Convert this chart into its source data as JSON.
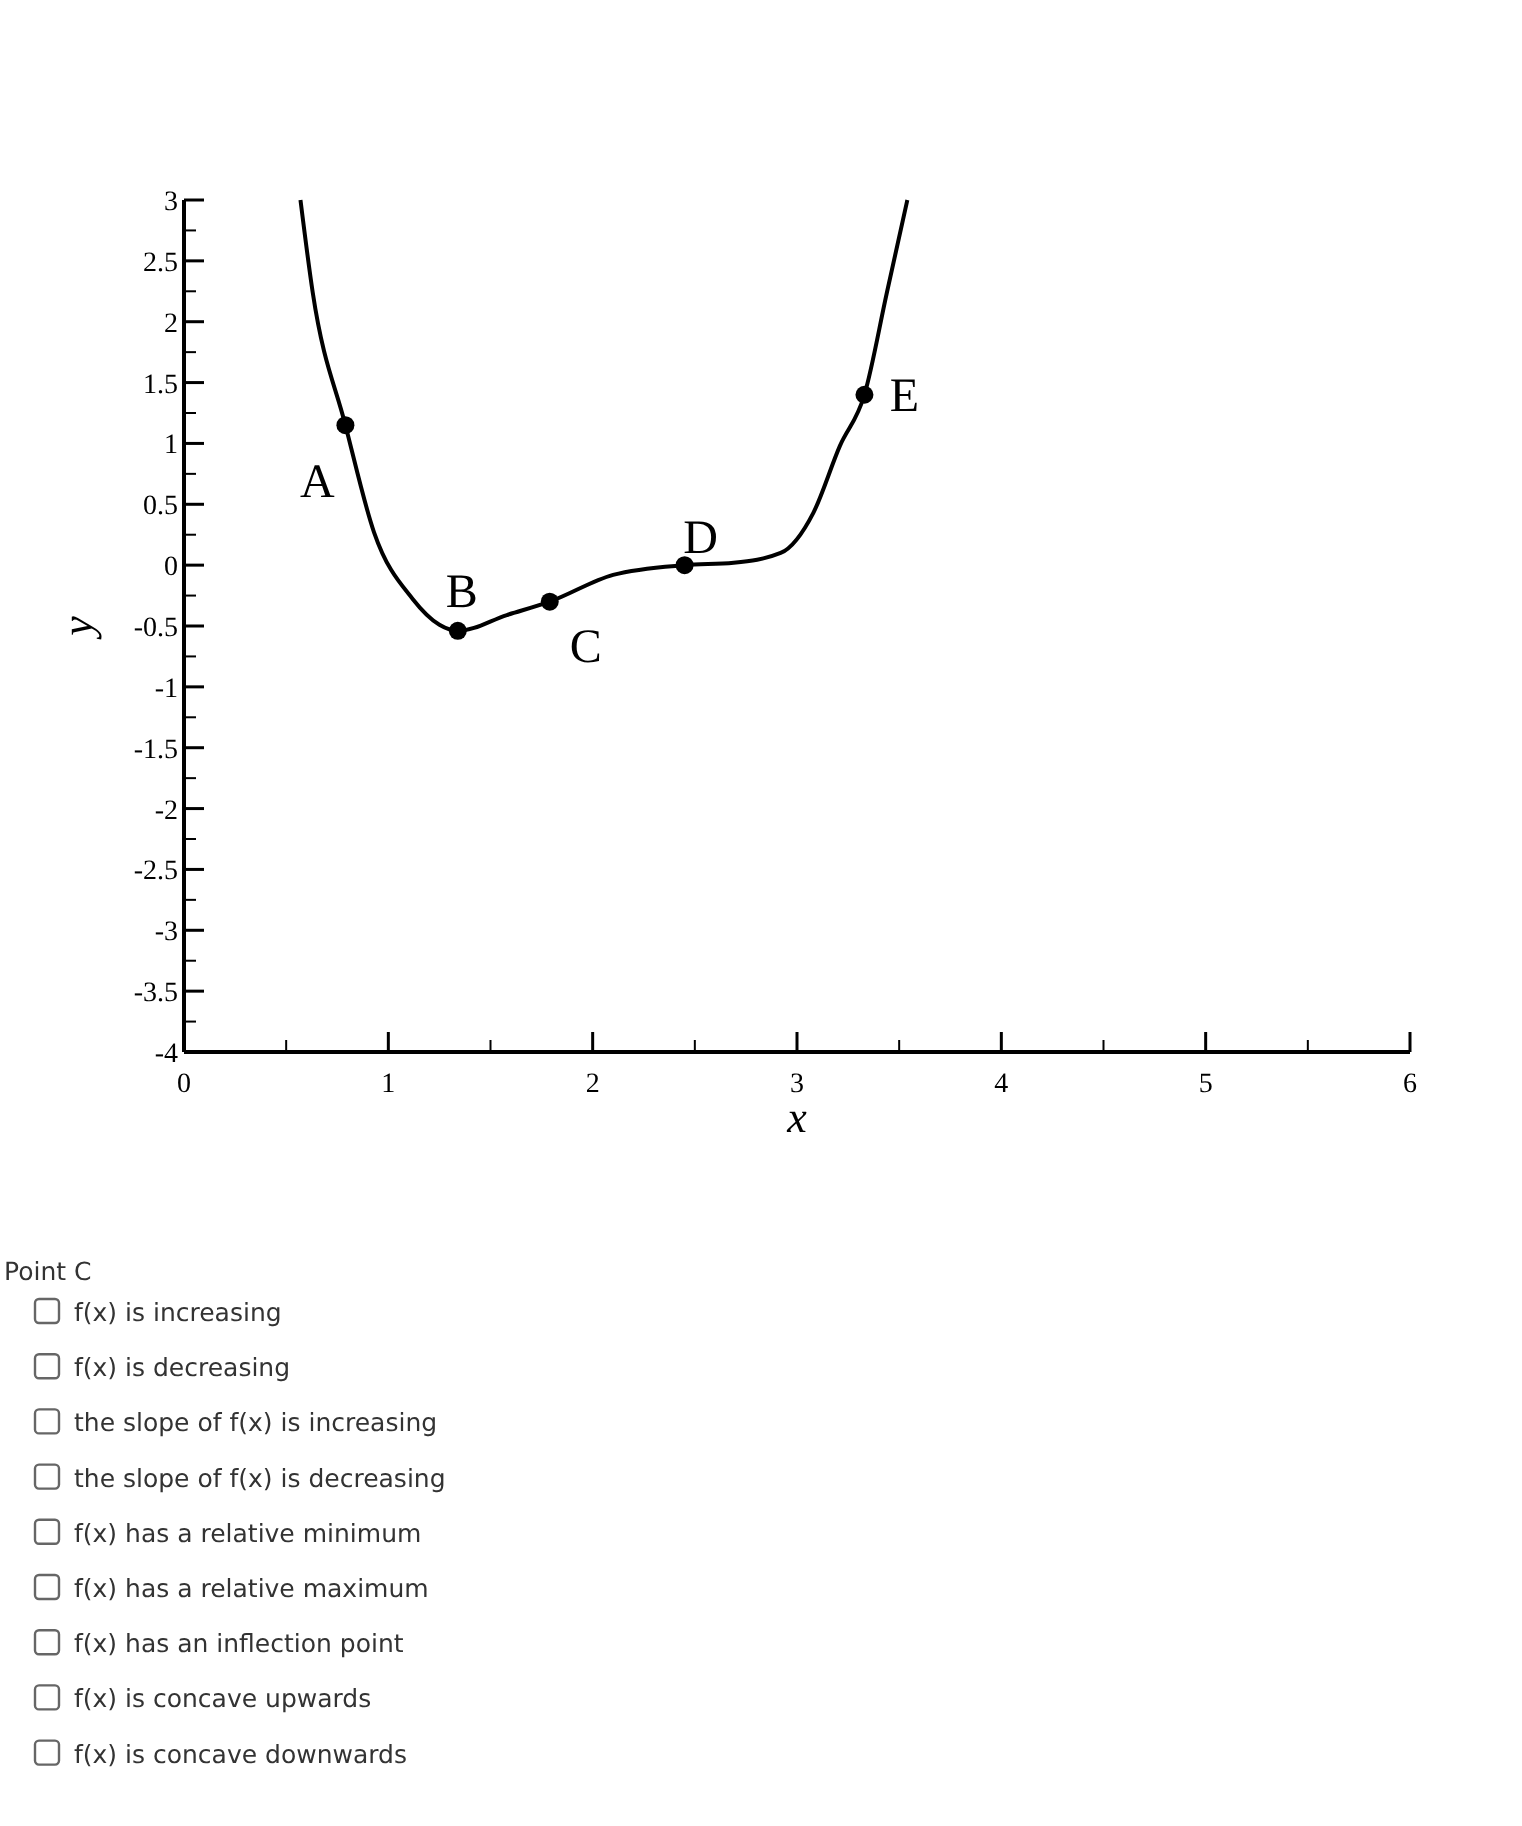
{
  "chart_data": {
    "type": "line",
    "xlabel": "x",
    "ylabel": "y",
    "xlim": [
      0,
      6
    ],
    "ylim": [
      -4,
      3
    ],
    "xticks": [
      0,
      1,
      2,
      3,
      4,
      5,
      6
    ],
    "yticks": [
      {
        "value": -4,
        "label": "-4"
      },
      {
        "value": -3.5,
        "label": "-3.5"
      },
      {
        "value": -3,
        "label": "-3"
      },
      {
        "value": -2.5,
        "label": "-2.5"
      },
      {
        "value": -2,
        "label": "-2"
      },
      {
        "value": -1.5,
        "label": "-1.5"
      },
      {
        "value": -1,
        "label": "-1"
      },
      {
        "value": -0.5,
        "label": "-0.5"
      },
      0,
      0.5,
      1,
      1.5,
      2,
      2.5,
      3
    ],
    "grid": false,
    "series": [
      {
        "color": "#000000",
        "marker": "none",
        "x": [
          0.57,
          0.63,
          0.79,
          0.93,
          1.12,
          1.25,
          1.34,
          1.58,
          1.79,
          2.1,
          2.45,
          2.69,
          2.92,
          3.08,
          3.21,
          3.33,
          3.44,
          3.54
        ],
        "values": [
          3,
          2.24,
          1.15,
          0.27,
          -0.28,
          -0.49,
          -0.54,
          -0.41,
          -0.3,
          -0.08,
          0,
          0.02,
          0.1,
          0.43,
          0.98,
          1.4,
          2.24,
          3
        ]
      },
      {
        "type": "scatter",
        "color": "#000000",
        "marker": "circle",
        "x": [
          0.79,
          1.34,
          1.79,
          2.45,
          3.33
        ],
        "values": [
          1.15,
          -0.54,
          -0.3,
          0,
          1.4
        ]
      }
    ],
    "annotations": [
      {
        "text": "A",
        "x": 0.79,
        "y": 1.15
      },
      {
        "text": "B",
        "x": 1.34,
        "y": -0.54
      },
      {
        "text": "C",
        "x": 1.79,
        "y": -0.3
      },
      {
        "text": "D",
        "x": 2.45,
        "y": 0
      },
      {
        "text": "E",
        "x": 3.33,
        "y": 1.4
      },
      "Point C",
      "f(x) is increasing",
      "f(x) is decreasing",
      "the slope of f(x) is increasing",
      "the slope of f(x) is decreasing",
      "f(x) has a relative minimum",
      "f(x) has a relative maximum",
      "f(x) has an inflection point",
      "f(x) is concave upwards",
      "f(x) is concave downwards"
    ]
  }
}
